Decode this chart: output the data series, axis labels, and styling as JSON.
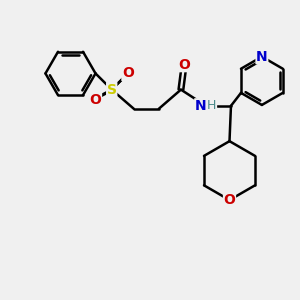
{
  "background_color": "#f0f0f0",
  "atom_colors": {
    "C": "#000000",
    "H": "#4a8a8a",
    "N": "#0000cc",
    "O": "#cc0000",
    "S": "#cccc00"
  },
  "bond_color": "#000000",
  "line_width": 1.8,
  "figsize": [
    3.0,
    3.0
  ],
  "dpi": 100,
  "xlim": [
    0,
    10
  ],
  "ylim": [
    0,
    10
  ]
}
